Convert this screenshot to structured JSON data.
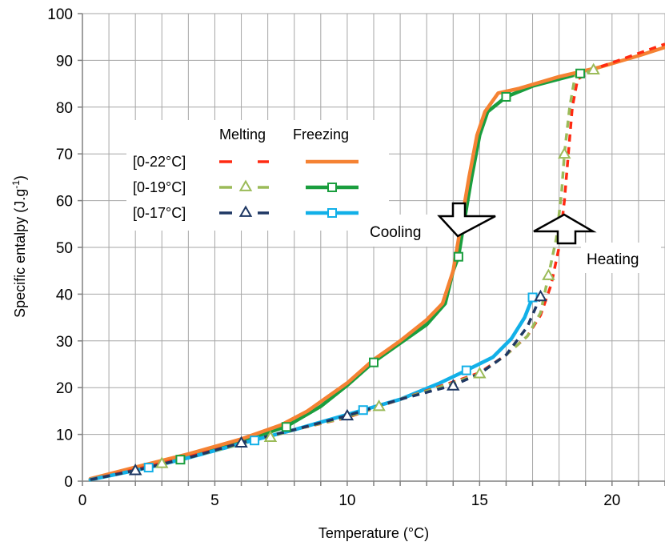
{
  "chart_data": {
    "type": "line",
    "xlabel": "Temperature (°C)",
    "ylabel_main": "Specific entalpy (J.g",
    "ylabel_sup": "-1",
    "ylabel_end": ")",
    "xlim": [
      0,
      22
    ],
    "ylim": [
      0,
      100
    ],
    "xticks": [
      0,
      5,
      10,
      15,
      20
    ],
    "yticks": [
      0,
      10,
      20,
      30,
      40,
      50,
      60,
      70,
      80,
      90,
      100
    ],
    "grid": true,
    "legend_header": {
      "melting": "Melting",
      "freezing": "Freezing"
    },
    "legend_rows": [
      "[0-22°C]",
      "[0-19°C]",
      "[0-17°C]"
    ],
    "colors": {
      "melt_22": "#ff2a12",
      "melt_19": "#9bbb59",
      "melt_17": "#1f3864",
      "freeze_22": "#f58233",
      "freeze_19": "#1a9e3e",
      "freeze_17": "#12b0e8"
    },
    "annotations": {
      "cooling": "Cooling",
      "heating": "Heating"
    },
    "series": [
      {
        "range": "[0-22°C]",
        "process": "Melting",
        "style": "dash",
        "marker": "none",
        "color_key": "melt_22",
        "points": [
          [
            0.3,
            0.3
          ],
          [
            2,
            2.5
          ],
          [
            4,
            5.2
          ],
          [
            6,
            8.2
          ],
          [
            8,
            11
          ],
          [
            10,
            13.6
          ],
          [
            12,
            17.5
          ],
          [
            14,
            21.2
          ],
          [
            15,
            23.2
          ],
          [
            16,
            27
          ],
          [
            16.8,
            31
          ],
          [
            17.3,
            35.5
          ],
          [
            17.7,
            42
          ],
          [
            18,
            50
          ],
          [
            18.2,
            60
          ],
          [
            18.35,
            70
          ],
          [
            18.5,
            80
          ],
          [
            18.7,
            86
          ],
          [
            19.5,
            88.5
          ],
          [
            21,
            91.5
          ],
          [
            22,
            93.5
          ]
        ]
      },
      {
        "range": "[0-19°C]",
        "process": "Melting",
        "style": "dash",
        "marker": "triangle",
        "color_key": "melt_19",
        "points": [
          [
            0.3,
            0.3
          ],
          [
            2,
            2.3
          ],
          [
            4,
            5
          ],
          [
            6,
            8
          ],
          [
            7.1,
            9.5
          ],
          [
            8,
            11
          ],
          [
            10,
            13.7
          ],
          [
            11.2,
            16
          ],
          [
            12,
            17.5
          ],
          [
            14,
            21
          ],
          [
            15,
            23
          ],
          [
            16,
            27
          ],
          [
            16.8,
            31
          ],
          [
            17.3,
            36
          ],
          [
            17.6,
            44
          ],
          [
            17.9,
            52
          ],
          [
            18.1,
            62
          ],
          [
            18.2,
            70
          ],
          [
            18.4,
            80
          ],
          [
            18.6,
            86.5
          ],
          [
            19.3,
            88
          ]
        ],
        "markers": [
          [
            2,
            2.3
          ],
          [
            3,
            3.8
          ],
          [
            7.1,
            9.4
          ],
          [
            11.2,
            16
          ],
          [
            15,
            23
          ],
          [
            17.6,
            44
          ],
          [
            18.2,
            70
          ],
          [
            19.3,
            88
          ]
        ]
      },
      {
        "range": "[0-17°C]",
        "process": "Melting",
        "style": "dash",
        "marker": "triangle",
        "color_key": "melt_17",
        "points": [
          [
            0.3,
            0.3
          ],
          [
            2,
            2.3
          ],
          [
            4,
            5
          ],
          [
            6,
            8.2
          ],
          [
            8,
            11
          ],
          [
            10,
            14
          ],
          [
            12,
            17.5
          ],
          [
            14,
            20.5
          ],
          [
            15,
            23
          ],
          [
            16,
            27
          ],
          [
            16.8,
            33
          ],
          [
            17.3,
            39.5
          ]
        ],
        "markers": [
          [
            2,
            2.3
          ],
          [
            6,
            8.2
          ],
          [
            10,
            14
          ],
          [
            14,
            20.4
          ],
          [
            17.3,
            39.5
          ]
        ]
      },
      {
        "range": "[0-22°C]",
        "process": "Freezing",
        "style": "solid",
        "marker": "none",
        "color_key": "freeze_22",
        "points": [
          [
            0.3,
            0.5
          ],
          [
            2,
            3
          ],
          [
            4,
            5.8
          ],
          [
            6,
            9
          ],
          [
            7.5,
            12
          ],
          [
            8.5,
            15
          ],
          [
            10,
            21
          ],
          [
            11,
            26
          ],
          [
            12,
            30
          ],
          [
            13,
            34.5
          ],
          [
            13.6,
            38
          ],
          [
            14,
            45
          ],
          [
            14.3,
            55
          ],
          [
            14.6,
            65
          ],
          [
            14.9,
            74
          ],
          [
            15.2,
            79
          ],
          [
            15.7,
            83
          ],
          [
            16.5,
            84
          ],
          [
            18,
            86.5
          ],
          [
            19.5,
            88.5
          ],
          [
            21,
            91
          ],
          [
            22,
            92.8
          ]
        ]
      },
      {
        "range": "[0-19°C]",
        "process": "Freezing",
        "style": "solid",
        "marker": "square",
        "color_key": "freeze_19",
        "points": [
          [
            0.3,
            0.3
          ],
          [
            2,
            2.8
          ],
          [
            3.7,
            4.6
          ],
          [
            6,
            8.5
          ],
          [
            7.7,
            11.7
          ],
          [
            9,
            16
          ],
          [
            10,
            20.5
          ],
          [
            11,
            25.5
          ],
          [
            12,
            29.5
          ],
          [
            13,
            33.5
          ],
          [
            13.7,
            38
          ],
          [
            14,
            45
          ],
          [
            14.2,
            48
          ],
          [
            14.4,
            55
          ],
          [
            14.7,
            65
          ],
          [
            15,
            74
          ],
          [
            15.3,
            79
          ],
          [
            16,
            82.2
          ],
          [
            17,
            84.5
          ],
          [
            18.8,
            87.2
          ]
        ],
        "markers": [
          [
            3.7,
            4.6
          ],
          [
            7.7,
            11.6
          ],
          [
            11,
            25.4
          ],
          [
            14.2,
            48
          ],
          [
            16,
            82.2
          ],
          [
            18.8,
            87.2
          ]
        ]
      },
      {
        "range": "[0-17°C]",
        "process": "Freezing",
        "style": "solid",
        "marker": "square",
        "color_key": "freeze_17",
        "points": [
          [
            0.3,
            0.3
          ],
          [
            2.5,
            2.9
          ],
          [
            4,
            5
          ],
          [
            6.5,
            8.8
          ],
          [
            8,
            11
          ],
          [
            10.6,
            15.2
          ],
          [
            12,
            17.5
          ],
          [
            13.5,
            21
          ],
          [
            14.5,
            23.7
          ],
          [
            15.5,
            26.5
          ],
          [
            16.2,
            30.5
          ],
          [
            16.7,
            35
          ],
          [
            17,
            39.3
          ]
        ],
        "markers": [
          [
            2.5,
            2.9
          ],
          [
            6.5,
            8.7
          ],
          [
            10.6,
            15.2
          ],
          [
            14.5,
            23.7
          ],
          [
            17,
            39.3
          ]
        ]
      }
    ]
  }
}
